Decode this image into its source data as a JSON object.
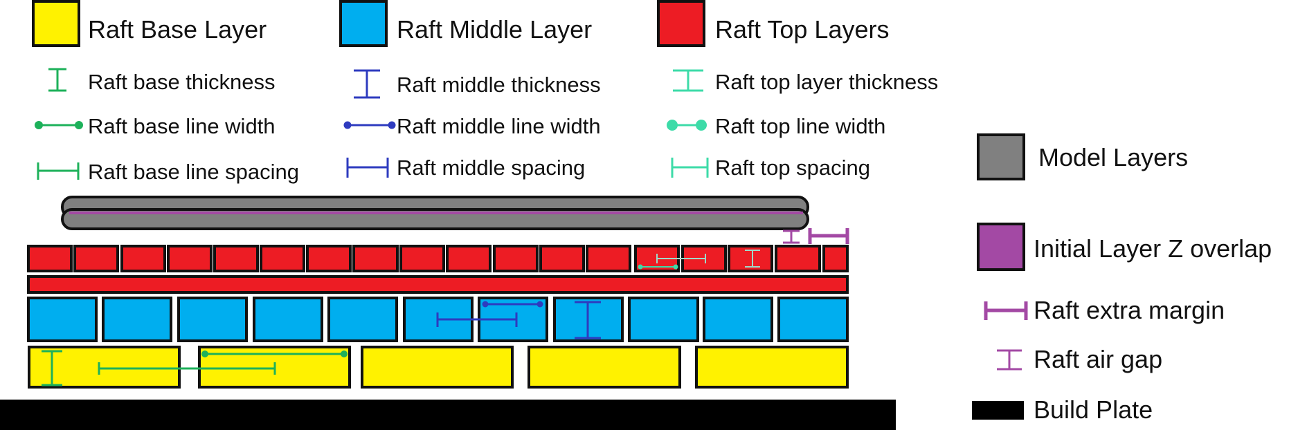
{
  "colors": {
    "base_fill": "#FFF200",
    "middle_fill": "#00AEEF",
    "top_fill": "#ED1C24",
    "model_fill": "#808080",
    "overlap": "#A349A4",
    "base_marker": "#1DB15A",
    "middle_marker": "#2E3BBF",
    "top_marker": "#3DDBA8",
    "outline": "#111111",
    "plate": "#000000"
  },
  "legend": {
    "base_layer": "Raft Base Layer",
    "middle_layer": "Raft Middle Layer",
    "top_layers": "Raft Top Layers",
    "base_thickness": "Raft base thickness",
    "middle_thickness": "Raft middle thickness",
    "top_thickness": "Raft top layer thickness",
    "base_line_width": "Raft base line width",
    "middle_line_width": "Raft middle line width",
    "top_line_width": "Raft top line width",
    "base_spacing": "Raft base line spacing",
    "middle_spacing": "Raft middle spacing",
    "top_spacing": "Raft top spacing",
    "model_layers": "Model Layers",
    "initial_overlap": "Initial Layer Z overlap",
    "extra_margin": "Raft extra margin",
    "air_gap": "Raft air gap",
    "build_plate": "Build Plate"
  },
  "marker_types": {
    "thickness": "i-beam-icon",
    "line_width": "dot-line-icon",
    "spacing": "bracket-icon"
  }
}
